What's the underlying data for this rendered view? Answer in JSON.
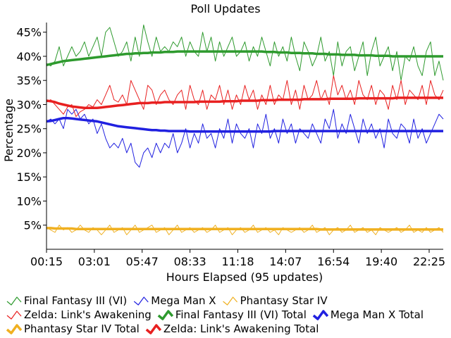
{
  "chart_data": {
    "type": "line",
    "title": "Poll Updates",
    "xlabel": "Hours Elapsed (95 updates)",
    "ylabel": "Percentage",
    "ylim": [
      0,
      47
    ],
    "x_range": [
      0,
      94
    ],
    "grid": false,
    "legend_position": "bottom",
    "x_ticks": [
      {
        "label": "00:15",
        "index": 0
      },
      {
        "label": "03:01",
        "index": 11.33
      },
      {
        "label": "05:47",
        "index": 22.66
      },
      {
        "label": "08:33",
        "index": 34.0
      },
      {
        "label": "11:18",
        "index": 45.33
      },
      {
        "label": "14:07",
        "index": 56.66
      },
      {
        "label": "16:54",
        "index": 68.0
      },
      {
        "label": "19:40",
        "index": 79.33
      },
      {
        "label": "22:25",
        "index": 90.66
      }
    ],
    "y_ticks": [
      {
        "label": "5%",
        "value": 5
      },
      {
        "label": "10%",
        "value": 10
      },
      {
        "label": "15%",
        "value": 15
      },
      {
        "label": "20%",
        "value": 20
      },
      {
        "label": "25%",
        "value": 25
      },
      {
        "label": "30%",
        "value": 30
      },
      {
        "label": "35%",
        "value": 35
      },
      {
        "label": "40%",
        "value": 40
      },
      {
        "label": "45%",
        "value": 45
      }
    ],
    "series": [
      {
        "name": "Final Fantasy III (VI)",
        "color": "#2e9a2e",
        "style": "thin",
        "values": [
          38.5,
          38,
          39,
          42,
          38,
          40,
          42,
          40,
          41,
          43,
          40,
          42,
          44,
          40,
          45,
          46,
          43,
          40,
          41,
          43,
          39,
          44,
          40,
          46.5,
          43,
          40,
          44,
          41,
          42,
          41,
          43,
          42,
          44,
          40,
          43,
          41,
          40,
          45,
          41,
          44,
          39,
          43,
          40,
          42,
          44,
          40,
          41,
          43,
          39,
          42,
          40,
          44,
          41,
          38,
          43,
          40,
          42,
          39,
          44,
          40,
          37,
          43,
          41,
          38,
          40,
          44,
          39,
          41,
          36,
          43,
          38,
          41,
          42,
          37,
          40,
          43,
          36,
          41,
          44,
          38,
          40,
          42,
          37,
          41,
          35,
          40,
          39,
          42,
          38,
          36,
          41,
          43,
          36,
          39,
          35
        ]
      },
      {
        "name": "Mega Man X",
        "color": "#2020e0",
        "style": "thin",
        "values": [
          26.5,
          27,
          26,
          27,
          25,
          29,
          28,
          29,
          27,
          28,
          26,
          27,
          24,
          26,
          23,
          21,
          22,
          21,
          23,
          20,
          22,
          18,
          17,
          20,
          21,
          19,
          22,
          20,
          22,
          21,
          24,
          20,
          22,
          25,
          21,
          24,
          22,
          26,
          23,
          24,
          21,
          25,
          23,
          27,
          22,
          26,
          24,
          23,
          25,
          21,
          26,
          24,
          28,
          23,
          25,
          22,
          27,
          24,
          26,
          22,
          25,
          24,
          23,
          26,
          24,
          22,
          27,
          25,
          29,
          23,
          26,
          24,
          28,
          25,
          22,
          27,
          24,
          26,
          23,
          25,
          21,
          27,
          24,
          23,
          26,
          25,
          22,
          27,
          23,
          25,
          22,
          24,
          26,
          28,
          27
        ]
      },
      {
        "name": "Phantasy Star IV",
        "color": "#f0b020",
        "style": "thin",
        "values": [
          4.5,
          4,
          3.5,
          5,
          4,
          4.5,
          3.5,
          4,
          5,
          4,
          3.5,
          4.5,
          4,
          3,
          4,
          5,
          3.5,
          4,
          4.5,
          3,
          4,
          5,
          3.5,
          4,
          4.5,
          5,
          3.5,
          4,
          4.5,
          3,
          4,
          5,
          3.5,
          4,
          4.5,
          3.5,
          4,
          4.5,
          3.5,
          4,
          5,
          3.5,
          4,
          4.5,
          3,
          4,
          4.5,
          3.5,
          4,
          5,
          3.5,
          4,
          4.5,
          3.5,
          4,
          3,
          4.5,
          4,
          3.5,
          4,
          4.5,
          3.5,
          4,
          5,
          3.5,
          4,
          4.5,
          3,
          4,
          4.5,
          3.5,
          4,
          5,
          3.5,
          4,
          4.5,
          3.5,
          4,
          3,
          4.5,
          4,
          3.5,
          4,
          4.5,
          3.5,
          4,
          5,
          3.5,
          4,
          3.5,
          4.5,
          3.5,
          4,
          4.5,
          3.5
        ]
      },
      {
        "name": "Zelda: Link's Awakening",
        "color": "#e82020",
        "style": "thin",
        "values": [
          30.5,
          31,
          30,
          29,
          28,
          29.5,
          30,
          27.5,
          28.5,
          29,
          30,
          29.5,
          31,
          30,
          32,
          34,
          31,
          30.5,
          32,
          30,
          35,
          33,
          31,
          29,
          34,
          33,
          30,
          32,
          33,
          31,
          30,
          32,
          33,
          29,
          34,
          31,
          30,
          33,
          29,
          32,
          31,
          34,
          30,
          33,
          29,
          32,
          30,
          34,
          31,
          33,
          29,
          32,
          30,
          34,
          30,
          32,
          31,
          35,
          30,
          33,
          29,
          34,
          31,
          32,
          35,
          31,
          33,
          30,
          36,
          32,
          34,
          31,
          33,
          30,
          35,
          32,
          31,
          34,
          30,
          33,
          32,
          29,
          34,
          31,
          35,
          30,
          33,
          32,
          31,
          34,
          30,
          35,
          32,
          31,
          33
        ]
      },
      {
        "name": "Final Fantasy III (VI) Total",
        "color": "#2e9a2e",
        "style": "thick",
        "values": [
          38.2,
          38.4,
          38.6,
          38.8,
          39,
          39.1,
          39.2,
          39.3,
          39.4,
          39.5,
          39.6,
          39.7,
          39.8,
          39.9,
          40,
          40.1,
          40.2,
          40.3,
          40.4,
          40.5,
          40.5,
          40.6,
          40.6,
          40.7,
          40.7,
          40.8,
          40.8,
          40.8,
          40.9,
          40.9,
          40.9,
          41,
          41,
          41,
          41,
          41,
          41,
          41,
          41,
          41,
          41,
          41,
          41,
          41,
          41,
          41,
          41,
          41,
          41,
          41,
          41,
          41,
          40.9,
          40.9,
          40.9,
          40.8,
          40.8,
          40.8,
          40.7,
          40.7,
          40.7,
          40.6,
          40.6,
          40.6,
          40.5,
          40.5,
          40.5,
          40.4,
          40.4,
          40.4,
          40.3,
          40.3,
          40.3,
          40.3,
          40.2,
          40.2,
          40.2,
          40.2,
          40.1,
          40.1,
          40.1,
          40.1,
          40,
          40,
          40,
          40,
          40,
          40,
          40,
          40,
          40,
          40,
          40,
          40,
          40
        ]
      },
      {
        "name": "Mega Man X Total",
        "color": "#2020e0",
        "style": "thick",
        "values": [
          26.5,
          26.6,
          26.8,
          27,
          27.2,
          27.2,
          27.1,
          27,
          26.9,
          26.8,
          26.7,
          26.6,
          26.5,
          26.3,
          26.1,
          25.9,
          25.7,
          25.5,
          25.4,
          25.3,
          25.2,
          25.1,
          25,
          24.9,
          24.8,
          24.7,
          24.7,
          24.6,
          24.6,
          24.5,
          24.5,
          24.5,
          24.5,
          24.5,
          24.4,
          24.4,
          24.4,
          24.4,
          24.4,
          24.4,
          24.4,
          24.4,
          24.4,
          24.4,
          24.4,
          24.4,
          24.4,
          24.4,
          24.4,
          24.4,
          24.4,
          24.4,
          24.4,
          24.4,
          24.5,
          24.5,
          24.5,
          24.5,
          24.5,
          24.5,
          24.5,
          24.5,
          24.5,
          24.5,
          24.5,
          24.5,
          24.5,
          24.5,
          24.5,
          24.5,
          24.5,
          24.5,
          24.5,
          24.5,
          24.5,
          24.5,
          24.5,
          24.5,
          24.5,
          24.5,
          24.5,
          24.5,
          24.5,
          24.5,
          24.5,
          24.5,
          24.5,
          24.5,
          24.5,
          24.5,
          24.5,
          24.5,
          24.5,
          24.5,
          24.5
        ]
      },
      {
        "name": "Phantasy Star IV Total",
        "color": "#f0b020",
        "style": "thick",
        "values": [
          4.4,
          4.4,
          4.3,
          4.3,
          4.3,
          4.3,
          4.3,
          4.2,
          4.2,
          4.2,
          4.2,
          4.2,
          4.2,
          4.2,
          4.2,
          4.2,
          4.2,
          4.2,
          4.2,
          4.2,
          4.2,
          4.2,
          4.2,
          4.2,
          4.2,
          4.2,
          4.2,
          4.2,
          4.2,
          4.2,
          4.2,
          4.2,
          4.2,
          4.2,
          4.2,
          4.2,
          4.2,
          4.2,
          4.2,
          4.2,
          4.2,
          4.2,
          4.2,
          4.2,
          4.2,
          4.2,
          4.2,
          4.2,
          4.2,
          4.2,
          4.2,
          4.2,
          4.2,
          4.2,
          4.2,
          4.2,
          4.2,
          4.2,
          4.2,
          4.2,
          4.2,
          4.2,
          4.2,
          4.2,
          4.2,
          4.1,
          4.1,
          4.1,
          4.1,
          4.1,
          4.1,
          4.1,
          4.1,
          4.1,
          4.1,
          4.1,
          4.1,
          4.1,
          4.1,
          4.1,
          4.1,
          4.1,
          4.1,
          4.1,
          4.1,
          4.1,
          4.1,
          4.1,
          4.1,
          4.1,
          4.1,
          4.1,
          4.1,
          4.1,
          4.1
        ]
      },
      {
        "name": "Zelda: Link's Awakening Total",
        "color": "#e82020",
        "style": "thick",
        "values": [
          30.8,
          30.7,
          30.5,
          30.2,
          30,
          29.8,
          29.6,
          29.5,
          29.4,
          29.3,
          29.3,
          29.3,
          29.3,
          29.4,
          29.5,
          29.6,
          29.7,
          29.8,
          29.9,
          30,
          30.1,
          30.2,
          30.3,
          30.3,
          30.3,
          30.4,
          30.4,
          30.4,
          30.5,
          30.5,
          30.5,
          30.5,
          30.5,
          30.5,
          30.5,
          30.5,
          30.6,
          30.6,
          30.6,
          30.6,
          30.6,
          30.6,
          30.7,
          30.7,
          30.7,
          30.7,
          30.8,
          30.8,
          30.8,
          30.8,
          30.8,
          30.9,
          30.9,
          30.9,
          30.9,
          31,
          31,
          31,
          31,
          31,
          31,
          31.1,
          31.1,
          31.1,
          31.1,
          31.1,
          31.1,
          31.2,
          31.2,
          31.2,
          31.2,
          31.2,
          31.2,
          31.2,
          31.3,
          31.3,
          31.3,
          31.3,
          31.3,
          31.3,
          31.3,
          31.3,
          31.3,
          31.4,
          31.4,
          31.4,
          31.4,
          31.4,
          31.4,
          31.4,
          31.4,
          31.4,
          31.4,
          31.4,
          31.4
        ]
      }
    ],
    "legend": [
      {
        "label": "Final Fantasy III (VI)",
        "color": "#2e9a2e",
        "style": "thin"
      },
      {
        "label": "Mega Man X",
        "color": "#2020e0",
        "style": "thin"
      },
      {
        "label": "Phantasy Star IV",
        "color": "#f0b020",
        "style": "thin"
      },
      {
        "label": "Zelda: Link's Awakening",
        "color": "#e82020",
        "style": "thin"
      },
      {
        "label": "Final Fantasy III (VI) Total",
        "color": "#2e9a2e",
        "style": "thick"
      },
      {
        "label": "Mega Man X Total",
        "color": "#2020e0",
        "style": "thick"
      },
      {
        "label": "Phantasy Star IV Total",
        "color": "#f0b020",
        "style": "thick"
      },
      {
        "label": "Zelda: Link's Awakening Total",
        "color": "#e82020",
        "style": "thick"
      }
    ]
  }
}
